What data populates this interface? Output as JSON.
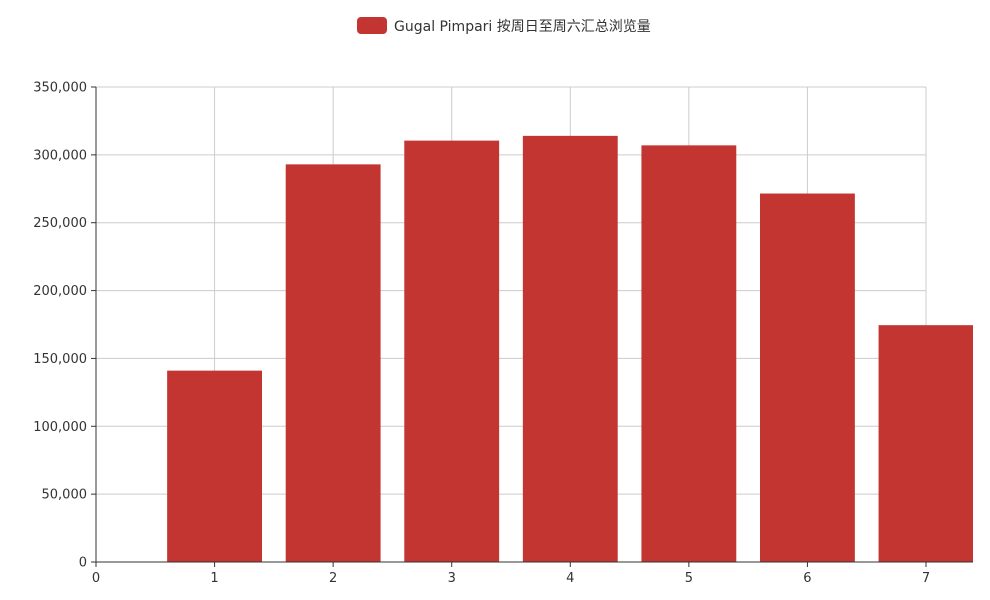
{
  "chart_data": {
    "type": "bar",
    "x": [
      1,
      2,
      3,
      4,
      5,
      6,
      7
    ],
    "series": [
      {
        "name": "Gugal Pimpari 按周日至周六汇总浏览量",
        "values": [
          141000,
          293000,
          310500,
          314000,
          307000,
          271500,
          174500
        ]
      }
    ],
    "xlim": [
      0,
      7
    ],
    "ylim": [
      0,
      350000
    ],
    "xticks": [
      "0",
      "1",
      "2",
      "3",
      "4",
      "5",
      "6",
      "7"
    ],
    "yticks": [
      "0",
      "50,000",
      "100,000",
      "150,000",
      "200,000",
      "250,000",
      "300,000",
      "350,000"
    ],
    "grid": true,
    "legend_position": "top-center",
    "colors": {
      "bar": "#c23531",
      "grid": "#cccccc",
      "axis": "#333333"
    }
  }
}
